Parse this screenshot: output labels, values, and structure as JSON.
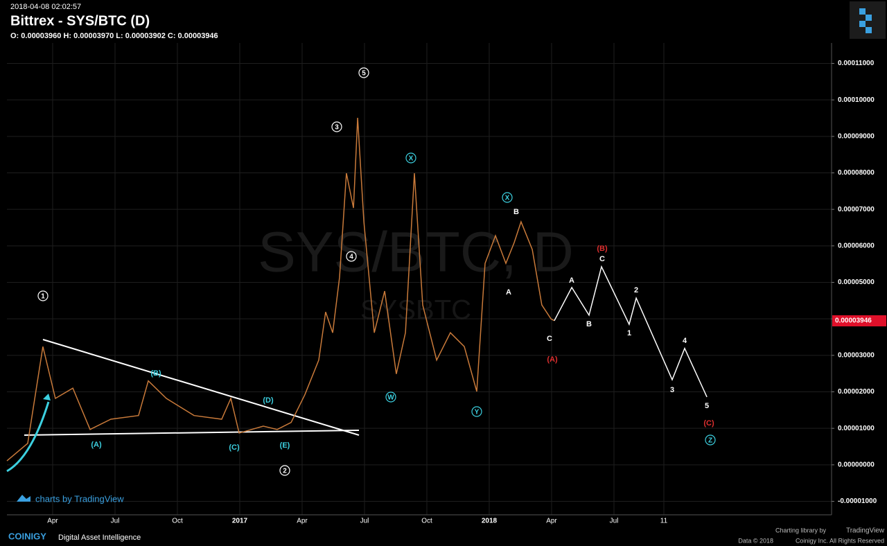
{
  "header": {
    "timestamp": "2018-04-08 02:02:57",
    "title": "Bittrex - SYS/BTC (D)",
    "ohlc": "O: 0.00003960 H: 0.00003970 L: 0.00003902 C: 0.00003946"
  },
  "watermark": {
    "main": "SYS/BTC, D",
    "sub": "SYSBTC"
  },
  "chart_data": {
    "type": "line",
    "xlim": [
      0.8,
      40.467
    ],
    "xticks": [
      {
        "value": 3,
        "label": "Apr"
      },
      {
        "value": 6,
        "label": "Jul"
      },
      {
        "value": 9,
        "label": "Oct"
      },
      {
        "value": 12,
        "label": "2017"
      },
      {
        "value": 15,
        "label": "Apr"
      },
      {
        "value": 18,
        "label": "Jul"
      },
      {
        "value": 21,
        "label": "Oct"
      },
      {
        "value": 24,
        "label": "2018"
      },
      {
        "value": 27,
        "label": "Apr"
      },
      {
        "value": 30,
        "label": "Jul"
      },
      {
        "value": 32.4,
        "label": "11"
      }
    ],
    "ylim": [
      -1.37e-05,
      0.0001156
    ],
    "yticks": [
      {
        "value": -1e-05,
        "label": "-0.00001000"
      },
      {
        "value": 0,
        "label": "0.00000000"
      },
      {
        "value": 1e-05,
        "label": "0.00001000"
      },
      {
        "value": 2e-05,
        "label": "0.00002000"
      },
      {
        "value": 3e-05,
        "label": "0.00003000"
      },
      {
        "value": 4e-05,
        "label": "0.00004000"
      },
      {
        "value": 5e-05,
        "label": "0.00005000"
      },
      {
        "value": 6e-05,
        "label": "0.00006000"
      },
      {
        "value": 7e-05,
        "label": "0.00007000"
      },
      {
        "value": 8e-05,
        "label": "0.00008000"
      },
      {
        "value": 9e-05,
        "label": "0.00009000"
      },
      {
        "value": 0.0001,
        "label": "0.00010000"
      },
      {
        "value": 0.00011,
        "label": "0.00011000"
      }
    ],
    "grid": true,
    "series": [
      {
        "color": "#c97a3a",
        "x": [
          0.8,
          1.8,
          2.53,
          3.13,
          3.97,
          4.8,
          5.8,
          7.13,
          7.6,
          8.47,
          9.8,
          11.13,
          11.57,
          11.97,
          13.13,
          13.8,
          14.47,
          15.13,
          15.8,
          16.13,
          16.47,
          16.8,
          17.13,
          17.47,
          17.67,
          17.97,
          18.47,
          18.97,
          19.53,
          19.97,
          20.4,
          20.8,
          21.47,
          22.13,
          22.8,
          23.4,
          23.8,
          24.3,
          24.8,
          25.2,
          25.53,
          26.07,
          26.53,
          26.97,
          27.13
        ],
        "values": [
          1.1e-06,
          5.9e-06,
          3.24e-05,
          1.82e-05,
          2.1e-05,
          9.7e-06,
          1.25e-05,
          1.35e-05,
          2.3e-05,
          1.82e-05,
          1.35e-05,
          1.25e-05,
          1.82e-05,
          8.7e-06,
          1.06e-05,
          9.7e-06,
          1.16e-05,
          1.92e-05,
          2.87e-05,
          4.19e-05,
          3.62e-05,
          5.14e-05,
          7.99e-05,
          7.04e-05,
          9.51e-05,
          6.66e-05,
          3.62e-05,
          4.76e-05,
          2.49e-05,
          3.62e-05,
          7.99e-05,
          4.38e-05,
          2.87e-05,
          3.62e-05,
          3.24e-05,
          2.01e-05,
          5.52e-05,
          6.28e-05,
          5.52e-05,
          6.09e-05,
          6.66e-05,
          5.9e-05,
          4.38e-05,
          4e-05,
          3.95e-05
        ]
      },
      {
        "color": "#ffffff",
        "x": [
          27.13,
          27.97,
          28.8,
          29.4,
          30.73,
          31.07,
          32.8,
          33.4,
          34.47
        ],
        "values": [
          3.95e-05,
          4.86e-05,
          4.1e-05,
          5.43e-05,
          3.85e-05,
          4.57e-05,
          2.33e-05,
          3.19e-05,
          1.86e-05
        ]
      }
    ],
    "last_price": 3.946e-05,
    "annotations": [
      "1",
      "2",
      "3",
      "4",
      "5",
      "(A)",
      "(B)",
      "(C)",
      "(D)",
      "(E)",
      "W",
      "X",
      "Y",
      "X",
      "Z",
      "A",
      "B",
      "C",
      "(A)",
      "(B)",
      "A",
      "B",
      "C",
      "1",
      "2",
      "3",
      "4",
      "5",
      "(C)"
    ]
  },
  "footer": {
    "tradingview": "charts by TradingView",
    "brand": "COINIGY",
    "tagline": "Digital Asset Intelligence",
    "library": "Charting library by",
    "library_name": "TradingView",
    "data_copy": "Data © 2018",
    "rights": "Coinigy Inc. All Rights Reserved"
  }
}
